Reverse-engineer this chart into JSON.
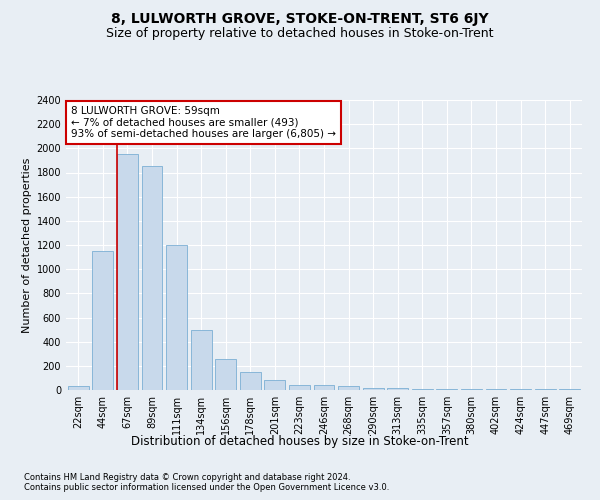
{
  "title": "8, LULWORTH GROVE, STOKE-ON-TRENT, ST6 6JY",
  "subtitle": "Size of property relative to detached houses in Stoke-on-Trent",
  "xlabel": "Distribution of detached houses by size in Stoke-on-Trent",
  "ylabel": "Number of detached properties",
  "categories": [
    "22sqm",
    "44sqm",
    "67sqm",
    "89sqm",
    "111sqm",
    "134sqm",
    "156sqm",
    "178sqm",
    "201sqm",
    "223sqm",
    "246sqm",
    "268sqm",
    "290sqm",
    "313sqm",
    "335sqm",
    "357sqm",
    "380sqm",
    "402sqm",
    "424sqm",
    "447sqm",
    "469sqm"
  ],
  "values": [
    30,
    1150,
    1950,
    1850,
    1200,
    500,
    260,
    150,
    80,
    45,
    40,
    35,
    20,
    15,
    10,
    10,
    8,
    5,
    5,
    5,
    5
  ],
  "bar_color": "#c8d9eb",
  "bar_edge_color": "#7bafd4",
  "vline_color": "#cc0000",
  "vline_x_index": 2,
  "annotation_text": "8 LULWORTH GROVE: 59sqm\n← 7% of detached houses are smaller (493)\n93% of semi-detached houses are larger (6,805) →",
  "annotation_box_facecolor": "#ffffff",
  "annotation_box_edgecolor": "#cc0000",
  "ylim": [
    0,
    2400
  ],
  "yticks": [
    0,
    200,
    400,
    600,
    800,
    1000,
    1200,
    1400,
    1600,
    1800,
    2000,
    2200,
    2400
  ],
  "footnote1": "Contains HM Land Registry data © Crown copyright and database right 2024.",
  "footnote2": "Contains public sector information licensed under the Open Government Licence v3.0.",
  "bg_color": "#e8eef4",
  "grid_color": "#ffffff",
  "title_fontsize": 10,
  "subtitle_fontsize": 9,
  "xlabel_fontsize": 8.5,
  "ylabel_fontsize": 8,
  "tick_fontsize": 7,
  "annot_fontsize": 7.5,
  "footnote_fontsize": 6
}
